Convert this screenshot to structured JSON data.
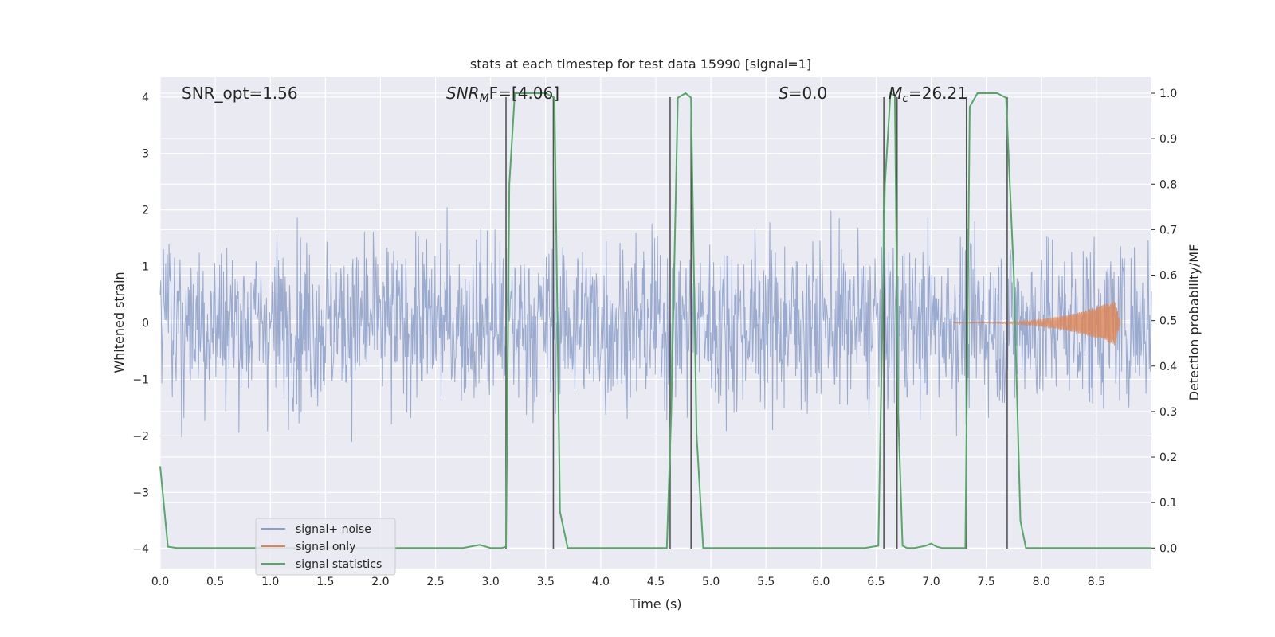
{
  "chart_data": {
    "type": "line",
    "title": "stats at each timestep for test data 15990 [signal=1]",
    "xlabel": "Time (s)",
    "ylabel_left": "Whitened strain",
    "ylabel_right": "Detection probability/MF",
    "xlim": [
      0,
      9
    ],
    "ylim_left": [
      -4.35,
      4.35
    ],
    "ylim_right": [
      -0.045,
      1.035
    ],
    "x_ticks": [
      "0.0",
      "0.5",
      "1.0",
      "1.5",
      "2.0",
      "2.5",
      "3.0",
      "3.5",
      "4.0",
      "4.5",
      "5.0",
      "5.5",
      "6.0",
      "6.5",
      "7.0",
      "7.5",
      "8.0",
      "8.5"
    ],
    "y_ticks_left": [
      "4",
      "3",
      "2",
      "1",
      "0",
      "−1",
      "−2",
      "−3",
      "−4"
    ],
    "y_ticks_right": [
      "1.0",
      "0.9",
      "0.8",
      "0.7",
      "0.6",
      "0.5",
      "0.4",
      "0.3",
      "0.2",
      "0.1",
      "0.0"
    ],
    "grid": true,
    "legend_placement": "lower-left",
    "annotations": {
      "snr_opt": "SNR_opt=1.56",
      "snr_mf_base": "SNR",
      "snr_mf_sub": "M",
      "snr_mf_rest": "F=[4.06]",
      "s_base": "S",
      "s_rest": "=0.0",
      "mc_base": "M",
      "mc_sub": "c",
      "mc_rest": "=26.21"
    },
    "series": [
      {
        "name": "signal+ noise",
        "color": "#8c9fc9",
        "description_values": "whitened noisy strain, amplitude roughly within ±4, core band ±1.6, sampled over 0–9 s"
      },
      {
        "name": "signal only",
        "color": "#dd8452",
        "chirp_start": 7.2,
        "chirp_peak_time": 8.67,
        "chirp_peak_amplitude": 0.4
      },
      {
        "name": "signal statistics",
        "color": "#55a868",
        "x": [
          0.0,
          0.07,
          0.15,
          0.3,
          0.6,
          1.0,
          1.5,
          2.0,
          2.5,
          2.75,
          2.9,
          3.0,
          3.1,
          3.14,
          3.17,
          3.22,
          3.3,
          3.5,
          3.58,
          3.63,
          3.7,
          3.8,
          4.0,
          4.3,
          4.6,
          4.64,
          4.7,
          4.77,
          4.82,
          4.87,
          4.93,
          5.0,
          5.5,
          6.0,
          6.4,
          6.52,
          6.58,
          6.63,
          6.67,
          6.7,
          6.74,
          6.78,
          6.85,
          6.95,
          7.0,
          7.05,
          7.1,
          7.31,
          7.35,
          7.42,
          7.5,
          7.6,
          7.68,
          7.75,
          7.81,
          7.86,
          8.0,
          8.5,
          9.0
        ],
        "y": [
          0.18,
          0.003,
          0.0,
          0.0,
          0.0,
          0.0,
          0.0,
          0.0,
          0.0,
          0.0,
          0.007,
          0.0,
          0.0,
          0.003,
          0.8,
          1.0,
          1.0,
          1.0,
          0.99,
          0.08,
          0.0,
          0.0,
          0.0,
          0.0,
          0.0,
          0.3,
          0.99,
          1.0,
          0.99,
          0.25,
          0.0,
          0.0,
          0.0,
          0.0,
          0.0,
          0.005,
          0.8,
          1.0,
          0.995,
          0.3,
          0.005,
          0.0,
          0.0,
          0.005,
          0.01,
          0.003,
          0.0,
          0.0,
          0.97,
          1.0,
          1.0,
          1.0,
          0.99,
          0.6,
          0.06,
          0.0,
          0.0,
          0.0,
          0.0
        ]
      }
    ],
    "vertical_markers": [
      {
        "x": 3.14,
        "color": "#555555"
      },
      {
        "x": 3.57,
        "color": "#555555"
      },
      {
        "x": 4.63,
        "color": "#555555"
      },
      {
        "x": 4.82,
        "color": "#555555"
      },
      {
        "x": 6.57,
        "color": "#555555"
      },
      {
        "x": 6.69,
        "color": "#555555"
      },
      {
        "x": 7.32,
        "color": "#555555"
      },
      {
        "x": 7.69,
        "color": "#555555"
      }
    ]
  }
}
